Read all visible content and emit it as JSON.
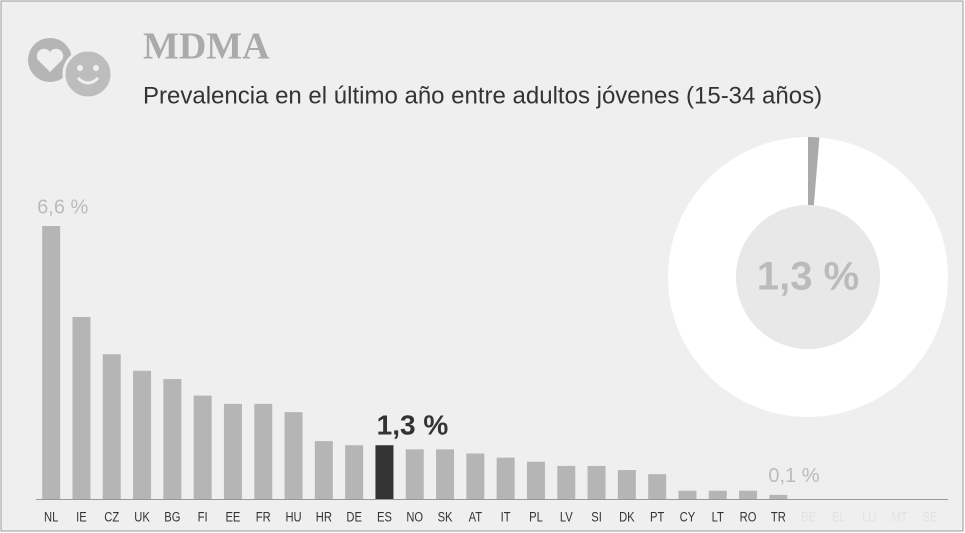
{
  "chart_data": {
    "type": "bar",
    "title": "MDMA",
    "subtitle": "Prevalencia en el último año entre adultos jóvenes (15-34 años)",
    "categories": [
      "NL",
      "IE",
      "CZ",
      "UK",
      "BG",
      "FI",
      "EE",
      "FR",
      "HU",
      "HR",
      "DE",
      "ES",
      "NO",
      "SK",
      "AT",
      "IT",
      "PL",
      "LV",
      "SI",
      "DK",
      "PT",
      "CY",
      "LT",
      "RO",
      "TR",
      "BE",
      "EL",
      "LU",
      "MT",
      "SE"
    ],
    "values": [
      6.6,
      4.4,
      3.5,
      3.1,
      2.9,
      2.5,
      2.3,
      2.3,
      2.1,
      1.4,
      1.3,
      1.3,
      1.2,
      1.2,
      1.1,
      1.0,
      0.9,
      0.8,
      0.8,
      0.7,
      0.6,
      0.2,
      0.2,
      0.2,
      0.1,
      null,
      null,
      null,
      null,
      null
    ],
    "value_labels": [
      "6,6 %",
      null,
      null,
      null,
      null,
      null,
      null,
      null,
      null,
      null,
      null,
      "1,3 %",
      null,
      null,
      null,
      null,
      null,
      null,
      null,
      null,
      null,
      null,
      null,
      null,
      "0,1 %",
      null,
      null,
      null,
      null,
      null
    ],
    "highlight": "ES",
    "color": "#b5b5b5",
    "highlight_color": "#333333",
    "ylim": [
      0,
      6.6
    ],
    "donut": {
      "value": 1.3,
      "label": "1,3 %",
      "total": 100,
      "color": "#aaaaaa"
    }
  }
}
